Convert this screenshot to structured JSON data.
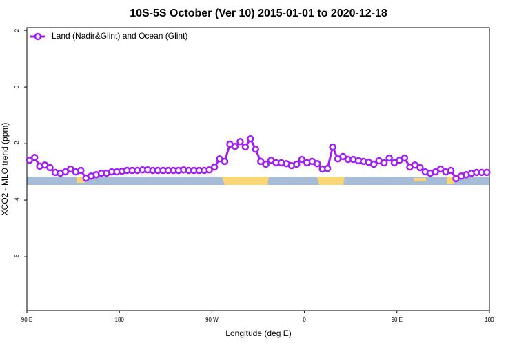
{
  "chart_data": {
    "type": "line",
    "title": "10S-5S October (Ver 10)   2015-01-01 to 2020-12-18",
    "x_label": "Longitude (deg E)",
    "y_label": "XCO2 - MLO trend (ppm)",
    "xlim": [
      90,
      540
    ],
    "xticks": [
      {
        "value": 90,
        "label": "90 E"
      },
      180,
      {
        "value": 270,
        "label": "90 W"
      },
      {
        "value": 360,
        "label": "0"
      },
      {
        "value": 450,
        "label": "90 E"
      },
      {
        "value": 540,
        "label": "180"
      }
    ],
    "ylim": [
      -7.9,
      2.1
    ],
    "yticks": [
      2,
      0,
      -2,
      -4,
      -6
    ],
    "legend": "top-left",
    "x": [
      92.5,
      97.5,
      102.5,
      107.5,
      112.5,
      117.5,
      122.5,
      127.5,
      132.5,
      137.5,
      142.5,
      147.5,
      152.5,
      157.5,
      162.5,
      167.5,
      172.5,
      177.5,
      182.5,
      187.5,
      192.5,
      197.5,
      202.5,
      207.5,
      212.5,
      217.5,
      222.5,
      227.5,
      232.5,
      237.5,
      242.5,
      247.5,
      252.5,
      257.5,
      262.5,
      267.5,
      272.5,
      277.5,
      282.5,
      287.5,
      292.5,
      297.5,
      302.5,
      307.5,
      312.5,
      317.5,
      322.5,
      327.5,
      332.5,
      337.5,
      342.5,
      347.5,
      352.5,
      357.5,
      362.5,
      367.5,
      372.5,
      377.5,
      382.5,
      387.5,
      392.5,
      397.5,
      402.5,
      407.5,
      412.5,
      417.5,
      422.5,
      427.5,
      432.5,
      437.5,
      442.5,
      447.5,
      452.5,
      457.5,
      462.5,
      467.5,
      472.5,
      477.5,
      482.5,
      487.5,
      492.5,
      497.5,
      502.5,
      507.5,
      512.5,
      517.5,
      522.5,
      527.5,
      532.5,
      537.5
    ],
    "series": [
      {
        "name": "Land (Nadir&Glint) and Ocean (Glint)",
        "color": "#a020f0",
        "values": [
          -2.59,
          -2.49,
          -2.8,
          -2.76,
          -2.85,
          -3.02,
          -3.05,
          -3.0,
          -2.9,
          -3.0,
          -2.95,
          -3.22,
          -3.15,
          -3.1,
          -3.05,
          -3.05,
          -3.0,
          -3.0,
          -2.98,
          -2.95,
          -2.95,
          -2.95,
          -2.93,
          -2.93,
          -2.95,
          -2.95,
          -2.95,
          -2.95,
          -2.95,
          -2.95,
          -2.93,
          -2.95,
          -2.95,
          -2.95,
          -2.95,
          -2.93,
          -2.83,
          -2.54,
          -2.63,
          -2.02,
          -2.1,
          -1.93,
          -2.12,
          -1.83,
          -2.2,
          -2.63,
          -2.73,
          -2.59,
          -2.68,
          -2.68,
          -2.71,
          -2.78,
          -2.73,
          -2.56,
          -2.68,
          -2.63,
          -2.71,
          -2.9,
          -2.88,
          -2.12,
          -2.54,
          -2.46,
          -2.56,
          -2.56,
          -2.61,
          -2.63,
          -2.66,
          -2.73,
          -2.61,
          -2.68,
          -2.51,
          -2.68,
          -2.59,
          -2.51,
          -2.83,
          -2.76,
          -2.85,
          -3.0,
          -3.05,
          -3.0,
          -2.9,
          -3.0,
          -2.95,
          -3.24,
          -3.15,
          -3.1,
          -3.05,
          -3.02,
          -3.02,
          -3.02
        ]
      }
    ]
  }
}
